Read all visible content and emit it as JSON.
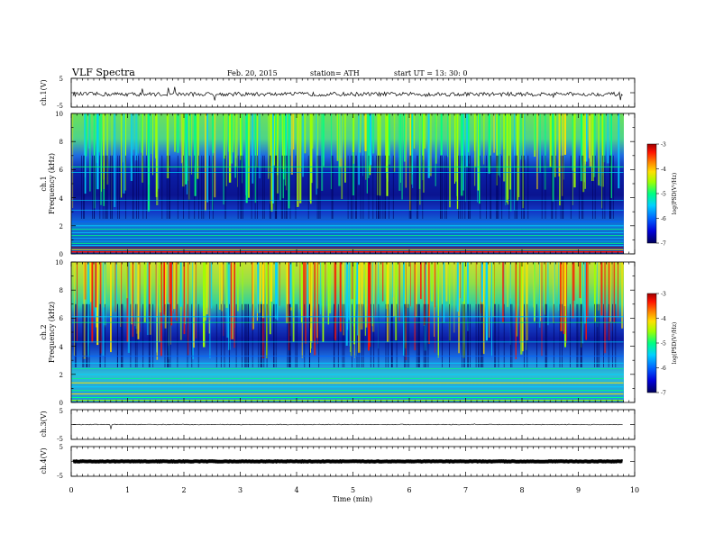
{
  "header": {
    "title": "VLF  Spectra",
    "date": "Feb. 20, 2015",
    "station": "station= ATH",
    "start_time": "start  UT  =   13: 30: 0"
  },
  "colorbar": {
    "label": "log(PSD(V²/Hz)",
    "ticks": [
      "-3",
      "-4",
      "-5",
      "-6",
      "-7"
    ],
    "colors": [
      "#00005a",
      "#0000d8",
      "#0064ff",
      "#00d0ff",
      "#00ff80",
      "#a0ff00",
      "#ffe000",
      "#ff8000",
      "#ff1000",
      "#a00000"
    ]
  },
  "chart_data": [
    {
      "type": "line",
      "id": "ch1-waveform",
      "ylabel": "ch.1(V)",
      "yticks": [
        "5",
        "-5"
      ],
      "ylim": [
        -5,
        5
      ],
      "xlim": [
        0,
        10
      ],
      "data_extent_min": [
        0,
        9.8
      ],
      "baseline": -0.5,
      "amplitude": "noisy, ~ ±0.8 V with spikes"
    },
    {
      "type": "heatmap",
      "id": "ch1-spectrogram",
      "ylabel_top": "ch.1",
      "ylabel": "Frequency  (kHz)",
      "yticks": [
        "10",
        "8",
        "6",
        "4",
        "2",
        "0"
      ],
      "ylim": [
        0,
        10
      ],
      "xlim": [
        0,
        10
      ],
      "colorscale": "log(PSD(V²/Hz)) from -7 (dark blue) to -3 (dark red)",
      "summary": "Strong broadband emission above ~6 kHz (green/yellow), weak 3-6 kHz band (dark blue), narrow-band lines below 2 kHz with red power-line harmonics near 0.3 kHz"
    },
    {
      "type": "heatmap",
      "id": "ch2-spectrogram",
      "ylabel_top": "ch.2",
      "ylabel": "Frequency  (kHz)",
      "yticks": [
        "10",
        "8",
        "6",
        "4",
        "2",
        "0"
      ],
      "ylim": [
        0,
        10
      ],
      "xlim": [
        0,
        10
      ],
      "colorscale": "log(PSD(V²/Hz)) from -7 (dark blue) to -3 (dark red)",
      "summary": "Intense sferic activity 6-10 kHz (yellow/red streaks), dark blue band 3-5 kHz, cyan/green narrow-band lines below 3 kHz"
    },
    {
      "type": "line",
      "id": "ch3-waveform",
      "ylabel": "ch.3(V)",
      "yticks": [
        "5",
        "-5"
      ],
      "ylim": [
        -5,
        5
      ],
      "xlim": [
        0,
        10
      ],
      "baseline": 0,
      "amplitude": "flat, ~ ±0.1 V"
    },
    {
      "type": "line",
      "id": "ch4-waveform",
      "ylabel": "ch.4(V)",
      "yticks": [
        "5",
        "-5"
      ],
      "ylim": [
        -5,
        5
      ],
      "xlim": [
        0,
        10
      ],
      "baseline": 0,
      "amplitude": "thick constant trace, ~ ±0.3 V"
    }
  ],
  "xaxis": {
    "label": "Time  (min)",
    "ticks": [
      "0",
      "1",
      "2",
      "3",
      "4",
      "5",
      "6",
      "7",
      "8",
      "9",
      "10"
    ],
    "range": [
      0,
      10
    ]
  }
}
